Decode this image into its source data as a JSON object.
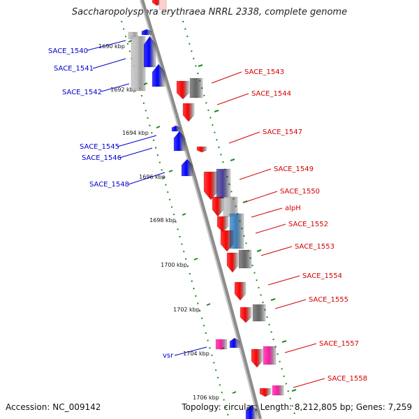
{
  "title": "Saccharopolyspora erythraea NRRL 2338, complete genome",
  "accession": "Accession: NC_009142",
  "topology": "Topology: circular; Length: 8,212,805 bp; Genes: 7,259",
  "colors": {
    "backbone": "#8c8c8c",
    "tick_green": "#1a8a1a",
    "forward_red": "#ff0000",
    "reverse_blue": "#0000ff",
    "gray": "#666666",
    "light_gray": "#bdbdbd",
    "indigo": "#4a3f9a",
    "steel_blue": "#3a7fc0",
    "magenta": "#ff1aa6",
    "label_red": "#d40000",
    "label_blue": "#0000cc"
  },
  "kbp_labels": [
    "1690 kbp",
    "1692 kbp",
    "1694 kbp",
    "1696 kbp",
    "1698 kbp",
    "1700 kbp",
    "1702 kbp",
    "1704 kbp",
    "1706 kbp"
  ],
  "gene_labels_left": [
    "SACE_1540",
    "SACE_1541",
    "SACE_1542",
    "SACE_1545",
    "SACE_1546",
    "SACE_1548",
    "vsr"
  ],
  "gene_labels_right": [
    "SACE_1543",
    "SACE_1544",
    "SACE_1547",
    "SACE_1549",
    "SACE_1550",
    "alpH",
    "SACE_1552",
    "SACE_1553",
    "SACE_1554",
    "SACE_1555",
    "SACE_1557",
    "SACE_1558"
  ]
}
